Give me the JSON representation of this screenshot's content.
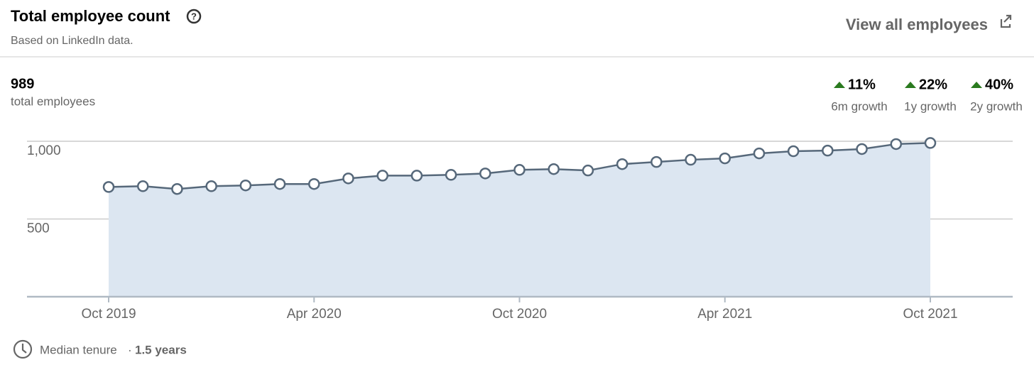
{
  "header": {
    "title": "Total employee count",
    "subtitle": "Based on LinkedIn data.",
    "link": "View all employees"
  },
  "summary": {
    "total": "989",
    "total_label": "total employees",
    "growth": [
      {
        "value": "11%",
        "label": "6m growth"
      },
      {
        "value": "22%",
        "label": "1y growth"
      },
      {
        "value": "40%",
        "label": "2y growth"
      }
    ]
  },
  "chart_data": {
    "type": "area",
    "categories": [
      "Oct 2019",
      null,
      null,
      null,
      null,
      null,
      "Apr 2020",
      null,
      null,
      null,
      null,
      null,
      "Oct 2020",
      null,
      null,
      null,
      null,
      null,
      "Apr 2021",
      null,
      null,
      null,
      null,
      null,
      "Oct 2021"
    ],
    "values": [
      706,
      711,
      693,
      711,
      716,
      725,
      725,
      761,
      779,
      779,
      784,
      793,
      816,
      821,
      812,
      853,
      867,
      881,
      890,
      922,
      936,
      940,
      950,
      982,
      989
    ],
    "color": "#56687a",
    "fill": "#dce6f1",
    "ylim": [
      0,
      1000
    ],
    "yticks": [
      500,
      {
        "value": 1000,
        "label": "1,000"
      }
    ],
    "grid": true
  },
  "footer": {
    "label": "Median tenure",
    "separator": "·",
    "value": "1.5 years"
  }
}
